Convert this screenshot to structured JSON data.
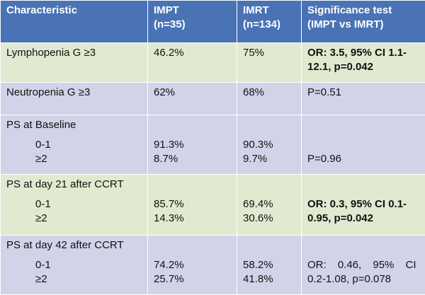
{
  "header": {
    "characteristic": "Characteristic",
    "impt": "IMPT",
    "impt_n": "(n=35)",
    "imrt": "IMRT",
    "imrt_n": "(n=134)",
    "test": "Significance test",
    "test_sub": "(IMPT vs IMRT)"
  },
  "rows": [
    {
      "characteristic": "Lymphopenia G ≥3",
      "impt": "46.2%",
      "imrt": "75%",
      "test_lines": [
        "OR: 3.5, 95% CI 1.1-",
        "12.1, p=0.042"
      ]
    },
    {
      "characteristic": "Neutropenia G ≥3",
      "impt": "62%",
      "imrt": "68%",
      "test": "P=0.51"
    },
    {
      "characteristic": "PS at Baseline",
      "categories": [
        "0-1",
        "≥2"
      ],
      "impt": [
        "91.3%",
        "8.7%"
      ],
      "imrt": [
        "90.3%",
        "9.7%"
      ],
      "test": "P=0.96"
    },
    {
      "characteristic": "PS at day 21 after CCRT",
      "categories": [
        "0-1",
        "≥2"
      ],
      "impt": [
        "85.7%",
        "14.3%"
      ],
      "imrt": [
        "69.4%",
        "30.6%"
      ],
      "test_lines": [
        "OR: 0.3, 95% CI 0.1-",
        "0.95, p=0.042"
      ]
    },
    {
      "characteristic": "PS at day 42 after CCRT",
      "categories": [
        "0-1",
        "≥2"
      ],
      "impt": [
        "74.2%",
        "25.7%"
      ],
      "imrt": [
        "58.2%",
        "41.8%"
      ],
      "test_lines": [
        "OR: 0.46, 95% CI",
        "0.2-1.08, p=0.078"
      ]
    }
  ],
  "colors": {
    "header_bg": "#4a73b6",
    "row_green": "#e1ead0",
    "row_blue": "#d1d4e8"
  }
}
